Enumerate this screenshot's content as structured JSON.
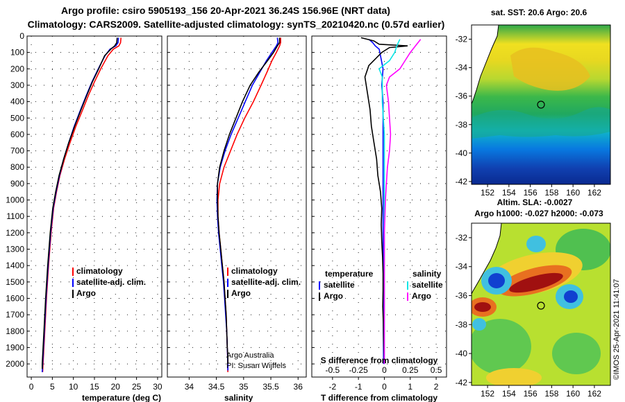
{
  "header": {
    "line1": "Argo profile: csiro 5905193_156 20-Apr-2021 36.24S 156.96E (NRT data)",
    "line2": "Climatology: CARS2009. Satellite-adjusted climatology: synTS_20210420.nc (0.57d earlier)"
  },
  "colors": {
    "climatology": "#ff0000",
    "satellite": "#0000ff",
    "argo": "#000000",
    "sal_satellite": "#00e5e5",
    "sal_argo": "#ff00ff"
  },
  "chart_data": [
    {
      "type": "line",
      "name": "temperature",
      "xlabel": "temperature (deg C)",
      "ylabel": "",
      "xlim": [
        -1,
        31
      ],
      "ylim": [
        2080,
        0
      ],
      "xticks": [
        "0",
        "5",
        "10",
        "15",
        "20",
        "25",
        "30"
      ],
      "yticks": [
        "0",
        "100",
        "200",
        "300",
        "400",
        "500",
        "600",
        "700",
        "800",
        "900",
        "1000",
        "1100",
        "1200",
        "1300",
        "1400",
        "1500",
        "1600",
        "1700",
        "1800",
        "1900",
        "2000"
      ],
      "legend": [
        "climatology",
        "satellite-adj. clim.",
        "Argo"
      ],
      "series": [
        {
          "name": "climatology",
          "color_key": "climatology",
          "points": [
            [
              21.3,
              10
            ],
            [
              21.2,
              40
            ],
            [
              20.8,
              60
            ],
            [
              19.5,
              80
            ],
            [
              18.2,
              120
            ],
            [
              16.5,
              200
            ],
            [
              15.0,
              280
            ],
            [
              13.6,
              360
            ],
            [
              12.2,
              450
            ],
            [
              10.6,
              550
            ],
            [
              9.2,
              650
            ],
            [
              7.9,
              750
            ],
            [
              6.8,
              850
            ],
            [
              6.0,
              950
            ],
            [
              5.3,
              1050
            ],
            [
              4.7,
              1200
            ],
            [
              4.1,
              1400
            ],
            [
              3.6,
              1600
            ],
            [
              3.2,
              1800
            ],
            [
              2.8,
              2000
            ],
            [
              2.7,
              2050
            ]
          ]
        },
        {
          "name": "satellite-adj. clim.",
          "color_key": "satellite",
          "points": [
            [
              20.7,
              10
            ],
            [
              20.6,
              40
            ],
            [
              20.1,
              60
            ],
            [
              18.7,
              80
            ],
            [
              17.5,
              120
            ],
            [
              15.9,
              200
            ],
            [
              14.4,
              280
            ],
            [
              13.1,
              360
            ],
            [
              11.7,
              450
            ],
            [
              10.2,
              550
            ],
            [
              8.9,
              650
            ],
            [
              7.7,
              750
            ],
            [
              6.7,
              850
            ],
            [
              5.9,
              950
            ],
            [
              5.2,
              1050
            ],
            [
              4.6,
              1200
            ],
            [
              4.0,
              1400
            ],
            [
              3.5,
              1600
            ],
            [
              3.1,
              1800
            ],
            [
              2.7,
              2000
            ],
            [
              2.6,
              2050
            ]
          ]
        },
        {
          "name": "Argo",
          "color_key": "argo",
          "points": [
            [
              20.4,
              10
            ],
            [
              20.3,
              40
            ],
            [
              19.8,
              60
            ],
            [
              18.9,
              80
            ],
            [
              17.4,
              120
            ],
            [
              16.0,
              200
            ],
            [
              14.5,
              280
            ],
            [
              13.2,
              360
            ],
            [
              11.8,
              450
            ],
            [
              10.3,
              550
            ],
            [
              8.9,
              650
            ],
            [
              7.7,
              750
            ],
            [
              6.6,
              850
            ],
            [
              5.8,
              950
            ],
            [
              5.1,
              1050
            ],
            [
              4.5,
              1200
            ],
            [
              3.9,
              1400
            ],
            [
              3.4,
              1600
            ],
            [
              3.0,
              1800
            ],
            [
              2.6,
              2000
            ],
            [
              2.6,
              2030
            ]
          ]
        }
      ]
    },
    {
      "type": "line",
      "name": "salinity",
      "xlabel": "salinity",
      "ylabel": "",
      "xlim": [
        33.6,
        36.15
      ],
      "ylim": [
        2080,
        0
      ],
      "xticks": [
        "34",
        "34.5",
        "35",
        "35.5",
        "36"
      ],
      "legend": [
        "climatology",
        "satellite-adj. clim.",
        "Argo"
      ],
      "credit": [
        "Argo Australia",
        "PI: Susan Wijffels"
      ],
      "series": [
        {
          "name": "climatology",
          "color_key": "climatology",
          "points": [
            [
              35.68,
              10
            ],
            [
              35.68,
              40
            ],
            [
              35.66,
              60
            ],
            [
              35.6,
              100
            ],
            [
              35.52,
              150
            ],
            [
              35.43,
              220
            ],
            [
              35.32,
              300
            ],
            [
              35.18,
              400
            ],
            [
              35.02,
              500
            ],
            [
              34.88,
              600
            ],
            [
              34.76,
              700
            ],
            [
              34.64,
              800
            ],
            [
              34.56,
              900
            ],
            [
              34.53,
              1000
            ],
            [
              34.53,
              1100
            ],
            [
              34.55,
              1200
            ],
            [
              34.58,
              1300
            ],
            [
              34.61,
              1400
            ],
            [
              34.64,
              1500
            ],
            [
              34.66,
              1600
            ],
            [
              34.68,
              1700
            ],
            [
              34.69,
              1800
            ],
            [
              34.7,
              1900
            ],
            [
              34.71,
              2000
            ],
            [
              34.71,
              2050
            ]
          ]
        },
        {
          "name": "satellite-adj. clim.",
          "color_key": "satellite",
          "points": [
            [
              35.62,
              10
            ],
            [
              35.63,
              40
            ],
            [
              35.6,
              60
            ],
            [
              35.52,
              100
            ],
            [
              35.42,
              150
            ],
            [
              35.3,
              220
            ],
            [
              35.16,
              300
            ],
            [
              35.03,
              400
            ],
            [
              34.9,
              500
            ],
            [
              34.77,
              600
            ],
            [
              34.66,
              700
            ],
            [
              34.57,
              800
            ],
            [
              34.52,
              900
            ],
            [
              34.51,
              1000
            ],
            [
              34.52,
              1100
            ],
            [
              34.54,
              1200
            ],
            [
              34.57,
              1300
            ],
            [
              34.6,
              1400
            ],
            [
              34.63,
              1500
            ],
            [
              34.65,
              1600
            ],
            [
              34.67,
              1700
            ],
            [
              34.69,
              1800
            ],
            [
              34.7,
              1900
            ],
            [
              34.71,
              2000
            ],
            [
              34.71,
              2040
            ]
          ]
        },
        {
          "name": "Argo",
          "color_key": "argo",
          "points": [
            [
              35.66,
              10
            ],
            [
              35.66,
              40
            ],
            [
              35.62,
              60
            ],
            [
              35.55,
              100
            ],
            [
              35.44,
              150
            ],
            [
              35.28,
              220
            ],
            [
              35.12,
              300
            ],
            [
              34.98,
              400
            ],
            [
              34.86,
              500
            ],
            [
              34.74,
              600
            ],
            [
              34.64,
              700
            ],
            [
              34.56,
              800
            ],
            [
              34.52,
              900
            ],
            [
              34.52,
              1000
            ],
            [
              34.53,
              1100
            ],
            [
              34.55,
              1200
            ],
            [
              34.58,
              1300
            ],
            [
              34.61,
              1400
            ],
            [
              34.64,
              1500
            ],
            [
              34.66,
              1600
            ],
            [
              34.68,
              1700
            ],
            [
              34.69,
              1800
            ],
            [
              34.7,
              1900
            ],
            [
              34.71,
              1950
            ],
            [
              34.71,
              2000
            ]
          ]
        }
      ]
    },
    {
      "type": "line",
      "name": "difference",
      "xlabel": "T difference from climatology",
      "x2label": "S difference from climatology",
      "ylabel": "",
      "xlim": [
        -2.8,
        2.4
      ],
      "ylim": [
        2080,
        0
      ],
      "xticks": [
        "-2",
        "-1",
        "0",
        "1",
        "2"
      ],
      "x2ticks": [
        "-0.5",
        "-0.25",
        "0",
        "0.25",
        "0.5"
      ],
      "legend_left_title": "temperature",
      "legend_right_title": "salinity",
      "legend_left": [
        "satellite",
        "Argo"
      ],
      "legend_right": [
        "satellite",
        "Argo"
      ],
      "series": [
        {
          "name": "T satellite",
          "color_key": "satellite",
          "points": [
            [
              -0.6,
              20
            ],
            [
              -0.45,
              40
            ],
            [
              -0.35,
              60
            ],
            [
              -0.2,
              80
            ],
            [
              -0.15,
              120
            ],
            [
              -0.05,
              200
            ],
            [
              -0.1,
              300
            ],
            [
              -0.05,
              400
            ],
            [
              -0.05,
              500
            ],
            [
              -0.05,
              700
            ],
            [
              -0.05,
              900
            ],
            [
              -0.05,
              1200
            ],
            [
              -0.04,
              1500
            ],
            [
              -0.04,
              1800
            ],
            [
              -0.03,
              2000
            ]
          ]
        },
        {
          "name": "T Argo",
          "color_key": "argo",
          "points": [
            [
              -0.9,
              10
            ],
            [
              -0.4,
              30
            ],
            [
              -0.2,
              50
            ],
            [
              0.9,
              60
            ],
            [
              0.2,
              70
            ],
            [
              -0.1,
              100
            ],
            [
              -0.6,
              180
            ],
            [
              -0.75,
              250
            ],
            [
              -0.65,
              350
            ],
            [
              -0.55,
              450
            ],
            [
              -0.5,
              550
            ],
            [
              -0.4,
              650
            ],
            [
              -0.3,
              750
            ],
            [
              -0.25,
              850
            ],
            [
              -0.15,
              950
            ],
            [
              -0.1,
              1050
            ],
            [
              -0.12,
              1150
            ],
            [
              -0.1,
              1250
            ],
            [
              -0.07,
              1350
            ],
            [
              -0.05,
              1450
            ],
            [
              -0.05,
              1550
            ],
            [
              -0.06,
              1650
            ],
            [
              -0.04,
              1750
            ],
            [
              -0.03,
              1850
            ],
            [
              0.0,
              2000
            ]
          ]
        },
        {
          "name": "S satellite",
          "color_key": "sal_satellite",
          "points": [
            [
              0.15,
              20
            ],
            [
              0.12,
              60
            ],
            [
              0.1,
              100
            ],
            [
              0.05,
              150
            ],
            [
              -0.05,
              200
            ],
            [
              -0.02,
              250
            ],
            [
              -0.02,
              400
            ],
            [
              0.0,
              600
            ],
            [
              0.0,
              800
            ],
            [
              0.0,
              1000
            ],
            [
              0.0,
              1200
            ],
            [
              0.0,
              1400
            ],
            [
              0.0,
              1600
            ],
            [
              0.0,
              1800
            ],
            [
              0.0,
              2000
            ]
          ]
        },
        {
          "name": "S Argo",
          "color_key": "sal_argo",
          "points": [
            [
              0.35,
              20
            ],
            [
              0.3,
              60
            ],
            [
              0.25,
              100
            ],
            [
              0.2,
              150
            ],
            [
              0.15,
              200
            ],
            [
              0.05,
              250
            ],
            [
              0.02,
              300
            ],
            [
              0.04,
              400
            ],
            [
              0.05,
              500
            ],
            [
              0.06,
              600
            ],
            [
              0.05,
              700
            ],
            [
              0.03,
              800
            ],
            [
              0.02,
              900
            ],
            [
              0.01,
              1000
            ],
            [
              0.0,
              1200
            ],
            [
              0.0,
              1400
            ],
            [
              0.0,
              1600
            ],
            [
              0.0,
              1800
            ],
            [
              0.0,
              2000
            ]
          ]
        }
      ]
    },
    {
      "type": "heatmap",
      "name": "sst_map",
      "title": "sat. SST: 20.6 Argo: 20.6",
      "xlim": [
        150.5,
        163.5
      ],
      "ylim": [
        -42.2,
        -31
      ],
      "xticks": [
        "152",
        "154",
        "156",
        "158",
        "160",
        "162"
      ],
      "yticks": [
        "-32",
        "-34",
        "-36",
        "-38",
        "-40",
        "-42"
      ],
      "argo_position": {
        "lon": 156.96,
        "lat": -36.24
      }
    },
    {
      "type": "heatmap",
      "name": "sla_map",
      "title": "Altim. SLA: -0.0027",
      "subtitle": "Argo h1000: -0.027 h2000: -0.073",
      "xlim": [
        150.5,
        163.5
      ],
      "ylim": [
        -42.2,
        -31
      ],
      "xticks": [
        "152",
        "154",
        "156",
        "158",
        "160",
        "162"
      ],
      "yticks": [
        "-32",
        "-34",
        "-36",
        "-38",
        "-40",
        "-42"
      ],
      "argo_position": {
        "lon": 156.96,
        "lat": -36.24
      }
    }
  ],
  "footer": {
    "stamp": "©IMOS 25-Apr-2021 11:41:07"
  }
}
